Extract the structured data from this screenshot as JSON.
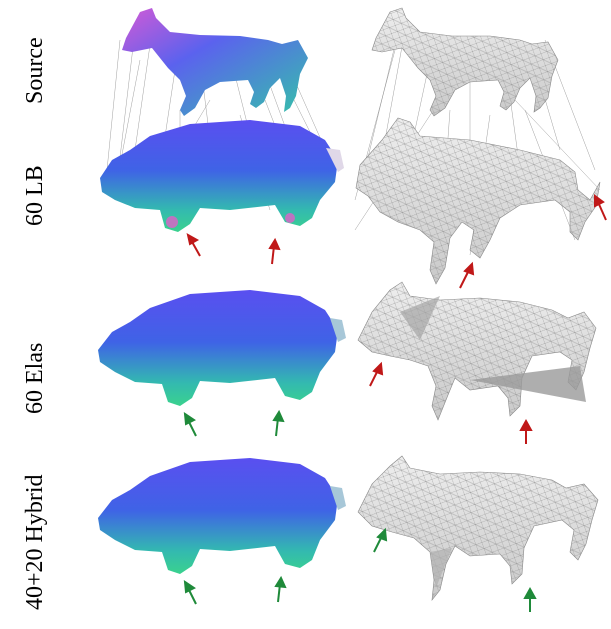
{
  "figure": {
    "row_labels": [
      "Source",
      "60 LB",
      "60 Elas",
      "40+20 Hybrid"
    ],
    "colors": {
      "mesh_blue": "#4a55e8",
      "mesh_teal": "#39c6a8",
      "mesh_magenta": "#d65ad0",
      "wire_gray": "#d8d8d8",
      "arrow_red": "#c01818",
      "arrow_green": "#1f8a3a"
    }
  }
}
